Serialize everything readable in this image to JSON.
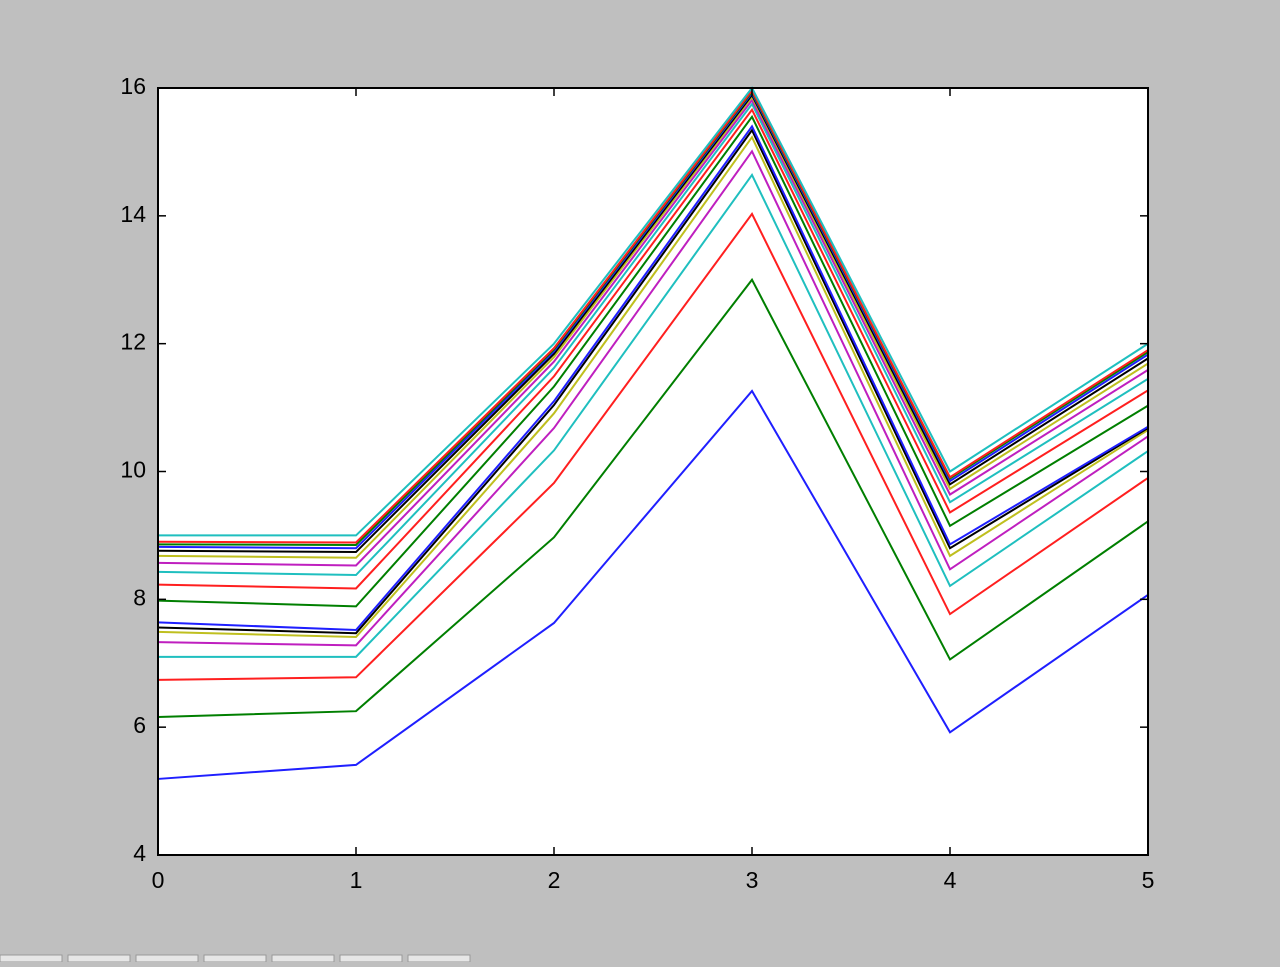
{
  "chart_data": {
    "type": "line",
    "x": [
      0,
      1,
      2,
      3,
      4,
      5
    ],
    "xlim": [
      0,
      5
    ],
    "xticks": [
      0,
      1,
      2,
      3,
      4,
      5
    ],
    "ylim": [
      4,
      16
    ],
    "yticks": [
      4,
      6,
      8,
      10,
      12,
      14,
      16
    ],
    "grid": false,
    "series": [
      {
        "color": "#1f1fff",
        "values": [
          5.19,
          5.41,
          7.63,
          11.26,
          5.92,
          8.07
        ]
      },
      {
        "color": "#007f00",
        "values": [
          6.16,
          6.25,
          8.97,
          13.0,
          7.06,
          9.22
        ]
      },
      {
        "color": "#ff1f1f",
        "values": [
          6.74,
          6.78,
          9.82,
          14.03,
          7.77,
          9.9
        ]
      },
      {
        "color": "#1fbfbf",
        "values": [
          7.1,
          7.1,
          10.33,
          14.64,
          8.21,
          10.32
        ]
      },
      {
        "color": "#bf1fbf",
        "values": [
          7.33,
          7.28,
          10.68,
          15.01,
          8.47,
          10.55
        ]
      },
      {
        "color": "#bfbf1f",
        "values": [
          7.49,
          7.41,
          10.91,
          15.23,
          8.68,
          10.65
        ]
      },
      {
        "color": "#000000",
        "values": [
          7.56,
          7.47,
          11.04,
          15.34,
          8.8,
          10.68
        ]
      },
      {
        "color": "#1f1fff",
        "values": [
          7.64,
          7.52,
          11.1,
          15.4,
          8.86,
          10.7
        ]
      },
      {
        "color": "#007f00",
        "values": [
          7.98,
          7.89,
          11.33,
          15.55,
          9.15,
          11.03
        ]
      },
      {
        "color": "#ff1f1f",
        "values": [
          8.23,
          8.17,
          11.49,
          15.66,
          9.36,
          11.27
        ]
      },
      {
        "color": "#1fbfbf",
        "values": [
          8.43,
          8.38,
          11.62,
          15.75,
          9.52,
          11.45
        ]
      },
      {
        "color": "#bf1fbf",
        "values": [
          8.57,
          8.53,
          11.72,
          15.81,
          9.64,
          11.59
        ]
      },
      {
        "color": "#bfbf1f",
        "values": [
          8.68,
          8.65,
          11.79,
          15.86,
          9.73,
          11.69
        ]
      },
      {
        "color": "#000000",
        "values": [
          8.76,
          8.74,
          11.84,
          15.89,
          9.8,
          11.77
        ]
      },
      {
        "color": "#1f1fff",
        "values": [
          8.82,
          8.8,
          11.88,
          15.92,
          9.85,
          11.83
        ]
      },
      {
        "color": "#007f00",
        "values": [
          8.86,
          8.85,
          11.91,
          15.94,
          9.89,
          11.87
        ]
      },
      {
        "color": "#ff1f1f",
        "values": [
          8.9,
          8.89,
          11.93,
          15.96,
          9.91,
          11.9
        ]
      },
      {
        "color": "#1fbfbf",
        "values": [
          9,
          9,
          12,
          16,
          10,
          12
        ]
      }
    ]
  }
}
